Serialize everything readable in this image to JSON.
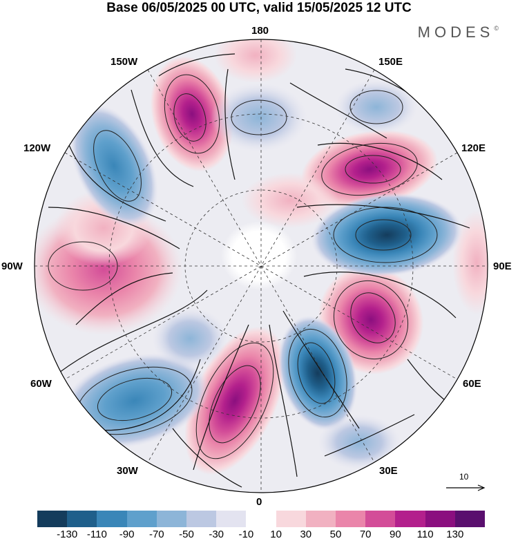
{
  "header": {
    "title": "Base 06/05/2025 00 UTC, valid 15/05/2025 12 UTC",
    "brand": "MODES",
    "brand_mark": "©"
  },
  "map": {
    "projection": "north polar stereographic",
    "longitude_labels": {
      "top": "180",
      "bottom": "0",
      "left": "90W",
      "right": "90E",
      "upper_left_1": "150W",
      "upper_left_2": "120W",
      "upper_right_1": "150E",
      "upper_right_2": "120E",
      "lower_left_1": "60W",
      "lower_left_2": "30W",
      "lower_right_1": "60E",
      "lower_right_2": "30E"
    },
    "reference_vector": "10"
  },
  "colorbar": {
    "colors": [
      "#143c5c",
      "#1f5f8b",
      "#3a86b8",
      "#5fa0cc",
      "#8db5d8",
      "#bcc8e2",
      "#e3e3f0",
      "#ffffff",
      "#f8d8dd",
      "#f1b1c1",
      "#ea85aa",
      "#d34d98",
      "#b3208c",
      "#8b0f7f",
      "#5a0f6e"
    ],
    "tick_labels": [
      "-130",
      "-110",
      "-90",
      "-70",
      "-50",
      "-30",
      "-10",
      "10",
      "30",
      "50",
      "70",
      "90",
      "110",
      "130"
    ]
  }
}
